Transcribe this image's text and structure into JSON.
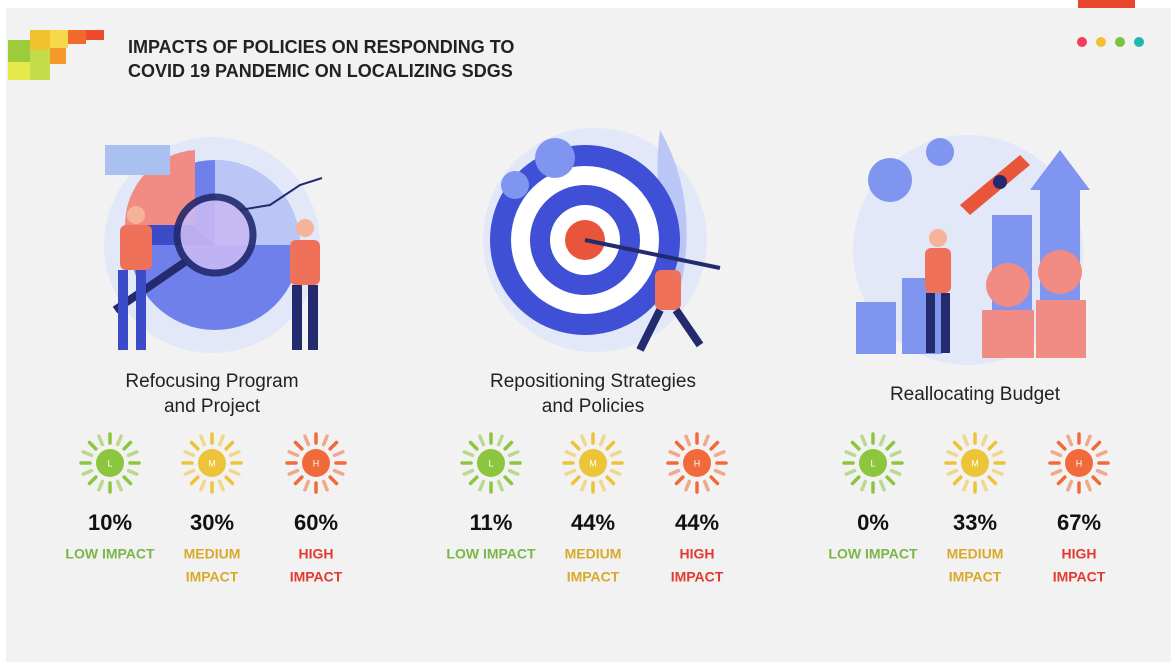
{
  "header": {
    "title": [
      "IMPACTS OF POLICIES ON RESPONDING TO",
      "COVID 19 PANDEMIC ON LOCALIZING SDGS"
    ]
  },
  "panels": [
    {
      "title": [
        "Refocusing Program",
        "and Project"
      ],
      "impacts": [
        {
          "icon": "L",
          "percent": "10%",
          "label": [
            "LOW IMPACT"
          ]
        },
        {
          "icon": "M",
          "percent": "30%",
          "label": [
            "MEDIUM",
            "IMPACT"
          ]
        },
        {
          "icon": "H",
          "percent": "60%",
          "label": [
            "HIGH",
            "IMPACT"
          ]
        }
      ]
    },
    {
      "title": [
        "Repositioning Strategies",
        "and Policies"
      ],
      "impacts": [
        {
          "icon": "L",
          "percent": "11%",
          "label": [
            "LOW IMPACT"
          ]
        },
        {
          "icon": "M",
          "percent": "44%",
          "label": [
            "MEDIUM",
            "IMPACT"
          ]
        },
        {
          "icon": "H",
          "percent": "44%",
          "label": [
            "HIGH",
            "IMPACT"
          ]
        }
      ]
    },
    {
      "title": [
        "Reallocating Budget"
      ],
      "impacts": [
        {
          "icon": "L",
          "percent": "0%",
          "label": [
            "LOW IMPACT"
          ]
        },
        {
          "icon": "M",
          "percent": "33%",
          "label": [
            "MEDIUM",
            "IMPACT"
          ]
        },
        {
          "icon": "H",
          "percent": "67%",
          "label": [
            "HIGH",
            "IMPACT"
          ]
        }
      ]
    }
  ]
}
